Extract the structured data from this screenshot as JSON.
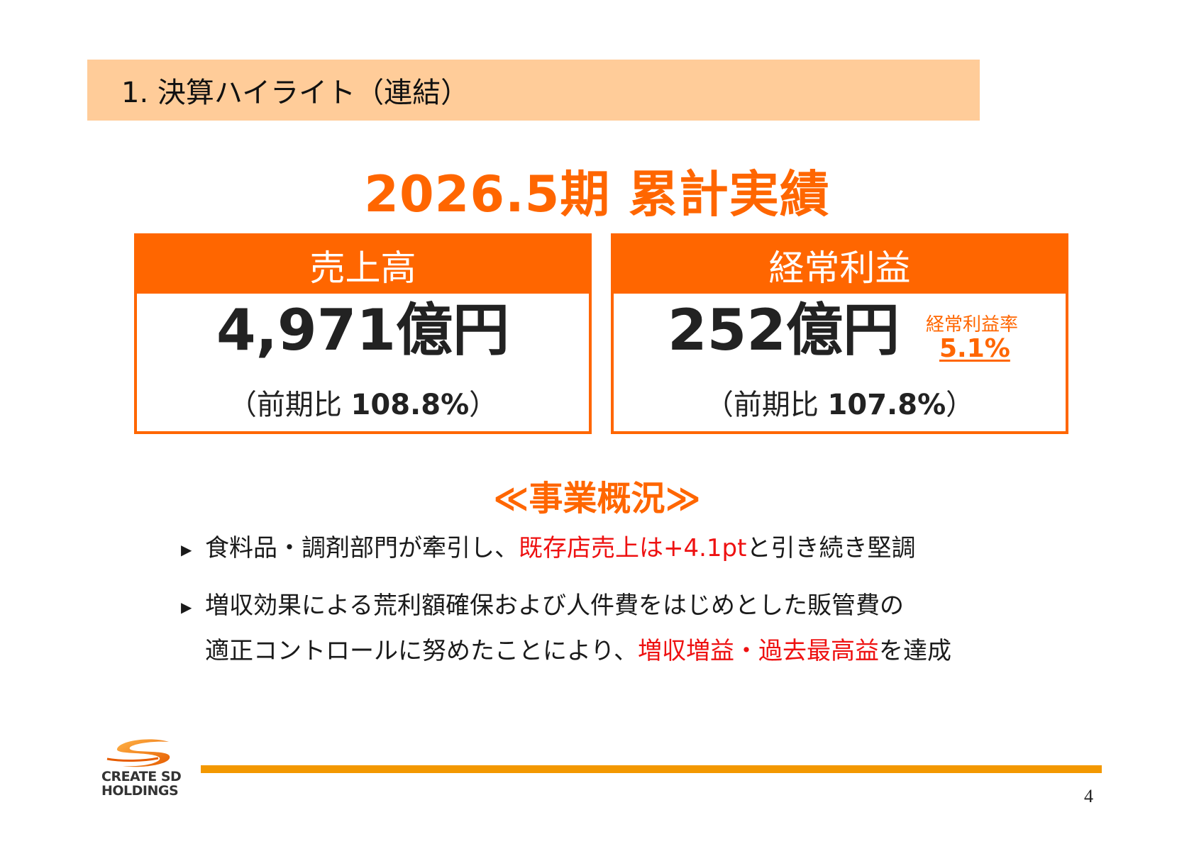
{
  "section": {
    "title": "1.  決算ハイライト（連結）"
  },
  "heading": "2026.5期 累計実績",
  "cards": {
    "sales": {
      "label": "売上高",
      "value": "4,971億円",
      "compare_prefix": "（前期比 ",
      "compare_value": "108.8%",
      "compare_suffix": "）"
    },
    "ordinary_profit": {
      "label": "経常利益",
      "value": "252億円",
      "compare_prefix": "（前期比 ",
      "compare_value": "107.8%",
      "compare_suffix": "）",
      "ratio_label": "経常利益率",
      "ratio_value": "5.1%"
    }
  },
  "overview": {
    "heading": "≪事業概況≫",
    "bullet1": {
      "text1": "食料品・調剤部門が牽引し、",
      "highlight": "既存店売上は+4.1pt",
      "text2": "と引き続き堅調"
    },
    "bullet2": {
      "line1": "増収効果による荒利額確保および人件費をはじめとした販管費の",
      "line2_text": "適正コントロールに努めたことにより、",
      "highlight": "増収増益・過去最高益",
      "text_end": "を達成"
    },
    "marker": "▶"
  },
  "footer": {
    "logo_line1": "CREATE SD",
    "logo_line2": "HOLDINGS",
    "page_number": "4"
  },
  "colors": {
    "accent": "#ff6600",
    "banner": "#ffcc99",
    "highlight": "#ee1111",
    "footer_line": "#f39800"
  }
}
